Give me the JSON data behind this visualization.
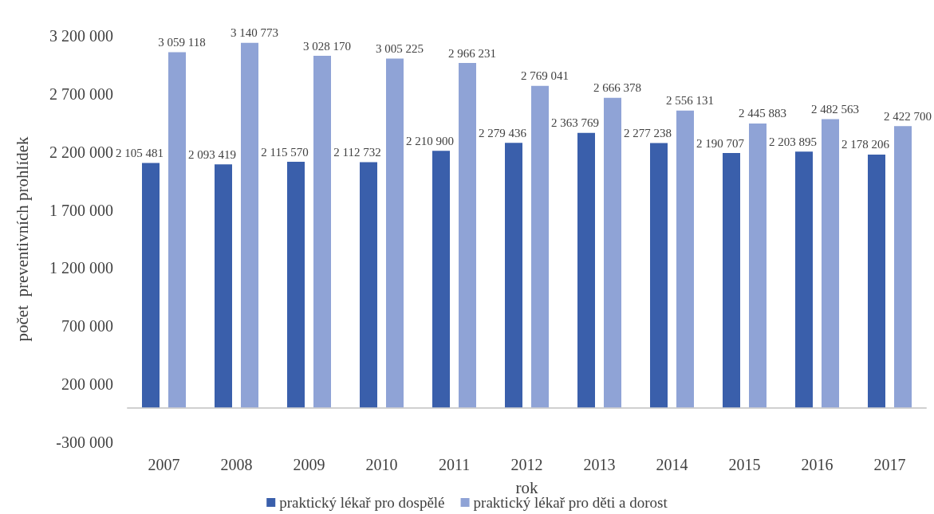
{
  "chart_data": {
    "type": "bar",
    "xlabel": "rok",
    "ylabel": "počet  preventivních prohlídek",
    "categories": [
      "2007",
      "2008",
      "2009",
      "2010",
      "2011",
      "2012",
      "2013",
      "2014",
      "2015",
      "2016",
      "2017"
    ],
    "series": [
      {
        "name": "praktický lékař pro dospělé",
        "color": "#3a5fab",
        "values": [
          2105481,
          2093419,
          2115570,
          2112732,
          2210900,
          2279436,
          2363769,
          2277238,
          2190707,
          2203895,
          2178206
        ]
      },
      {
        "name": "praktický lékař pro děti a dorost",
        "color": "#8fa3d6",
        "values": [
          3059118,
          3140773,
          3028170,
          3005225,
          2966231,
          2769041,
          2666378,
          2556131,
          2445883,
          2482563,
          2422700
        ]
      }
    ],
    "ylim": [
      -300000,
      3200000
    ],
    "yticks": [
      -300000,
      200000,
      700000,
      1200000,
      1700000,
      2200000,
      2700000,
      3200000
    ],
    "data_labels": true,
    "grid": false,
    "legend": "bottom"
  }
}
